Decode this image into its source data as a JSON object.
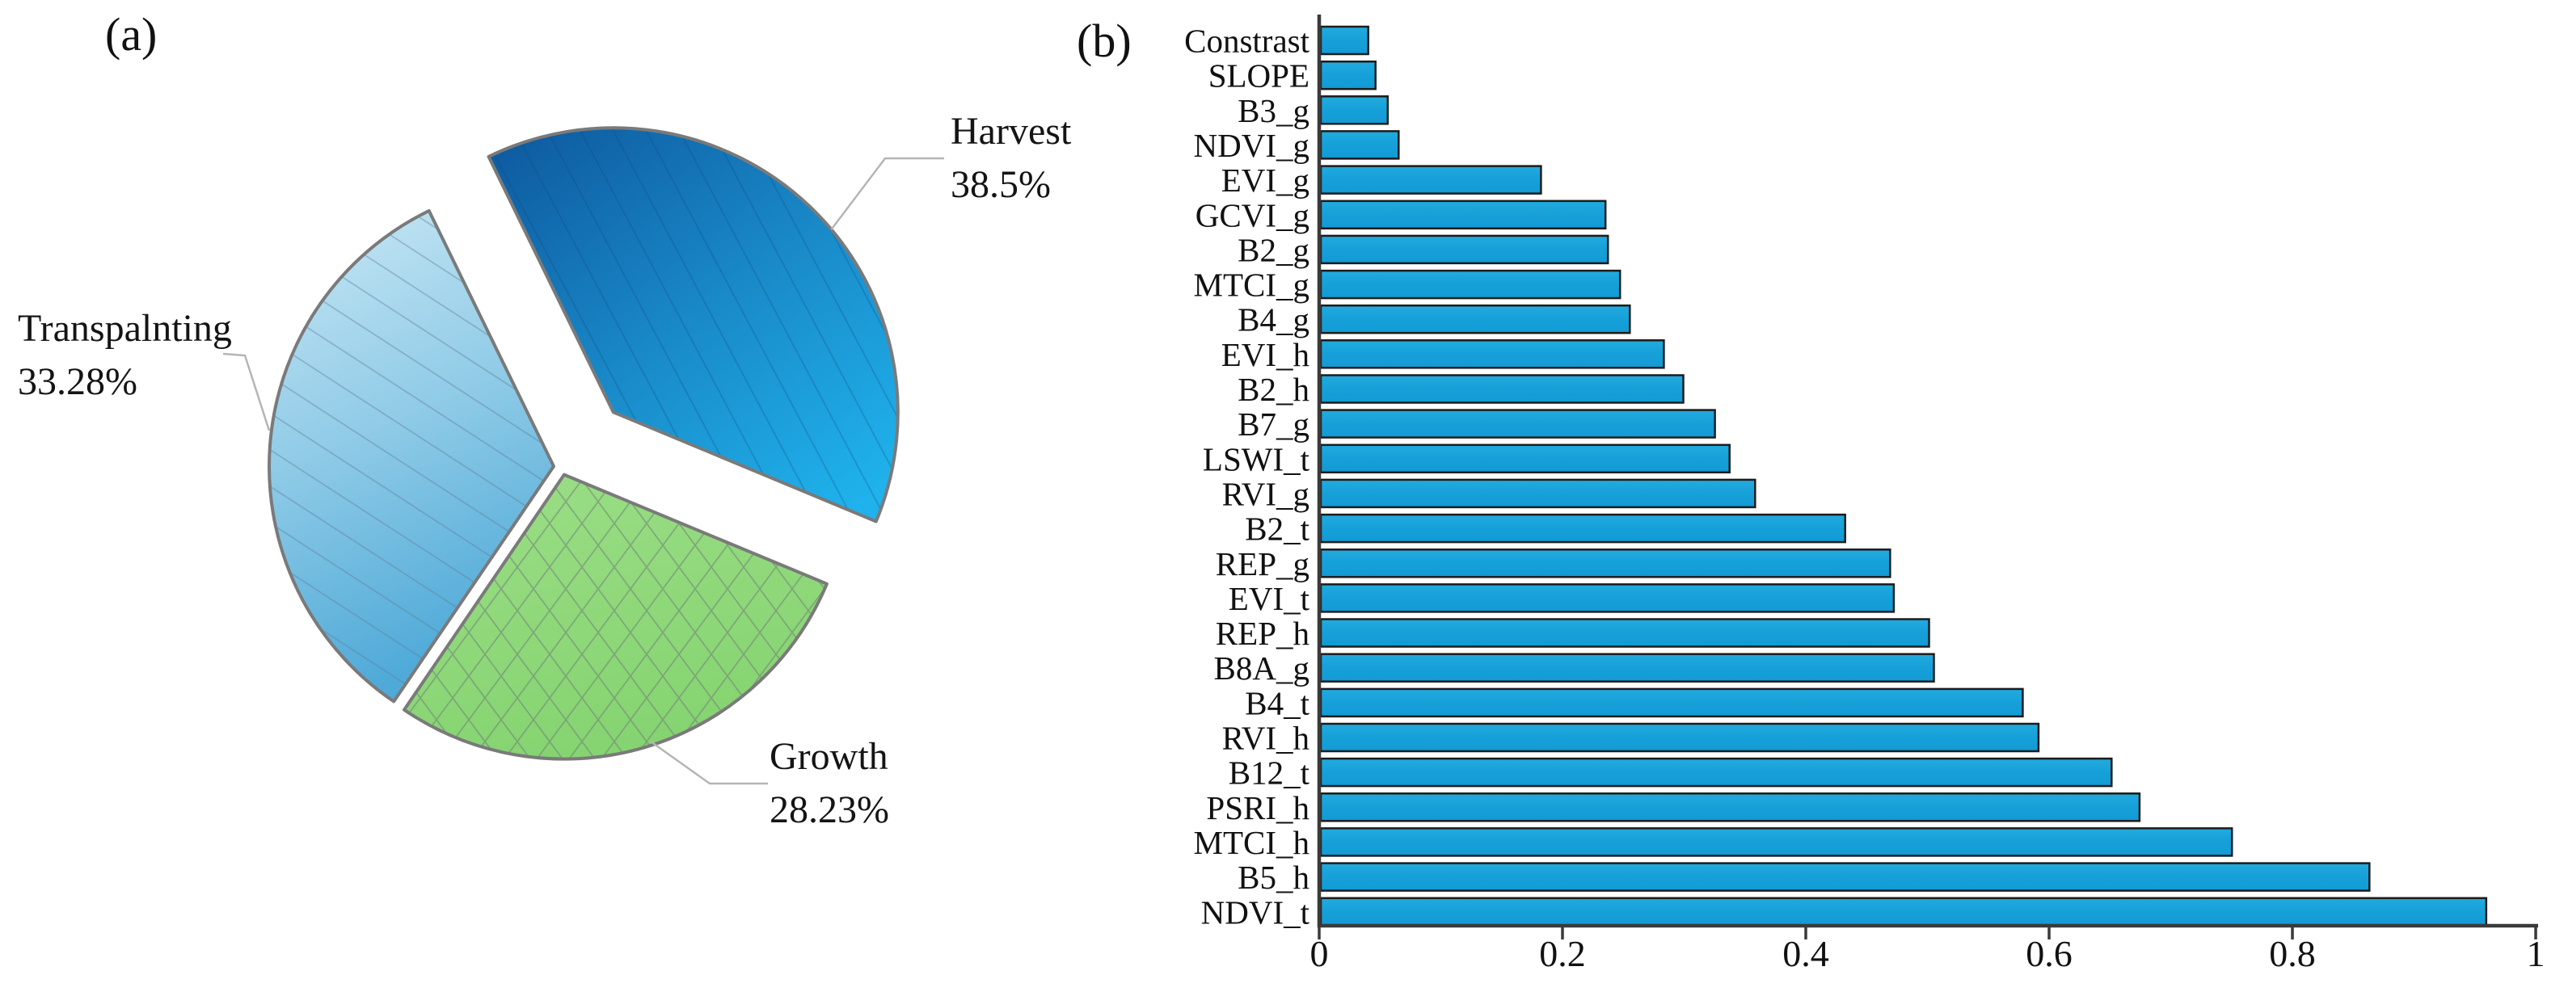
{
  "panels": {
    "a_tag": "(a)",
    "b_tag": "(b)"
  },
  "chart_data": [
    {
      "type": "pie",
      "panel": "a",
      "title": "",
      "start_angle_deg": 116,
      "direction": "clockwise",
      "slices": [
        {
          "label": "Harvest",
          "pct_label": "38.5%",
          "value": 38.5,
          "exploded": true,
          "fill_start": "#0e5ba0",
          "fill_end": "#1fb2ec",
          "pattern": "diagonal-steep"
        },
        {
          "label": "Growth",
          "pct_label": "28.23%",
          "value": 28.23,
          "exploded": false,
          "fill_start": "#9bde86",
          "fill_end": "#86d471",
          "pattern": "crosshatch"
        },
        {
          "label": "Transpalnting",
          "pct_label": "33.28%",
          "value": 33.28,
          "exploded": false,
          "fill_start": "#c9e8f5",
          "fill_end": "#4faad8",
          "pattern": "diagonal"
        }
      ],
      "slice_border_color": "#7a7a7a",
      "leader_line_color": "#b5b5b5"
    },
    {
      "type": "bar",
      "panel": "b",
      "orientation": "horizontal",
      "title": "",
      "xlabel": "",
      "ylabel": "",
      "xlim": [
        0,
        1
      ],
      "xticks": [
        "0",
        "0.2",
        "0.4",
        "0.6",
        "0.8",
        "1"
      ],
      "grid": false,
      "legend": null,
      "bar_color": "#18a3db",
      "bar_border_color": "#1c1c1c",
      "axis_color": "#3a3a3a",
      "categories": [
        "Constrast",
        "SLOPE",
        "B3_g",
        "NDVI_g",
        "EVI_g",
        "GCVI_g",
        "B2_g",
        "MTCI_g",
        "B4_g",
        "EVI_h",
        "B2_h",
        "B7_g",
        "LSWI_t",
        "RVI_g",
        "B2_t",
        "REP_g",
        "EVI_t",
        "REP_h",
        "B8A_g",
        "B4_t",
        "RVI_h",
        "B12_t",
        "PSRI_h",
        "MTCI_h",
        "B5_h",
        "NDVI_t"
      ],
      "values": [
        0.039,
        0.045,
        0.055,
        0.064,
        0.181,
        0.234,
        0.236,
        0.246,
        0.254,
        0.282,
        0.298,
        0.324,
        0.336,
        0.357,
        0.431,
        0.468,
        0.471,
        0.5,
        0.504,
        0.577,
        0.59,
        0.65,
        0.673,
        0.749,
        0.862,
        0.958
      ]
    }
  ]
}
